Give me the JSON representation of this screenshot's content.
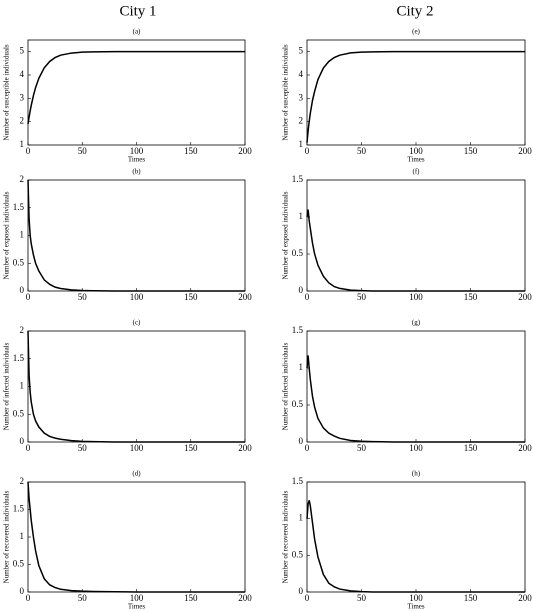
{
  "column_titles": [
    "City 1",
    "City 2"
  ],
  "chart_data": [
    {
      "type": "line",
      "title": "(a)",
      "y_label": "Number of susceptible individuals",
      "x_label": "Times",
      "x": [
        0,
        1,
        2,
        3,
        5,
        7,
        10,
        15,
        20,
        25,
        30,
        40,
        50,
        60,
        80,
        100,
        150,
        200
      ],
      "values": [
        1.9,
        2.2,
        2.46,
        2.7,
        3.12,
        3.46,
        3.86,
        4.31,
        4.58,
        4.75,
        4.85,
        4.94,
        4.98,
        4.99,
        5,
        5,
        5,
        5
      ],
      "color": "#000000",
      "xlim": [
        0,
        200
      ],
      "xticks": [
        0,
        50,
        100,
        150,
        200
      ],
      "ylim": [
        1,
        5.5
      ],
      "yticks": [
        1,
        2,
        3,
        4,
        5
      ]
    },
    {
      "type": "line",
      "title": "(b)",
      "y_label": "Number of exposed individuals",
      "x": [
        0,
        1,
        2,
        3,
        5,
        7,
        10,
        15,
        20,
        25,
        30,
        40,
        50,
        60,
        80,
        100,
        150,
        200
      ],
      "values": [
        2,
        1.3,
        1.0,
        0.85,
        0.65,
        0.5,
        0.36,
        0.2,
        0.12,
        0.07,
        0.045,
        0.02,
        0.01,
        0.005,
        0,
        0,
        0,
        0
      ],
      "color": "#000000",
      "xlim": [
        0,
        200
      ],
      "xticks": [
        0,
        50,
        100,
        150,
        200
      ],
      "ylim": [
        0,
        2
      ],
      "yticks": [
        0,
        0.5,
        1,
        1.5,
        2
      ]
    },
    {
      "type": "line",
      "title": "(c)",
      "y_label": "Number of infected individuals",
      "x": [
        0,
        1,
        2,
        3,
        5,
        7,
        10,
        15,
        20,
        25,
        30,
        40,
        50,
        60,
        80,
        100,
        150,
        200
      ],
      "values": [
        2,
        1.2,
        0.9,
        0.72,
        0.5,
        0.38,
        0.27,
        0.16,
        0.1,
        0.07,
        0.05,
        0.025,
        0.012,
        0.006,
        0,
        0,
        0,
        0
      ],
      "color": "#000000",
      "xlim": [
        0,
        200
      ],
      "xticks": [
        0,
        50,
        100,
        150,
        200
      ],
      "ylim": [
        0,
        2
      ],
      "yticks": [
        0,
        0.5,
        1,
        1.5,
        2
      ]
    },
    {
      "type": "line",
      "title": "(d)",
      "y_label": "Number of recovered individuals",
      "x_label": "Times",
      "x": [
        0,
        1,
        2,
        3,
        5,
        7,
        10,
        15,
        20,
        25,
        30,
        40,
        50,
        60,
        80,
        100,
        150,
        200
      ],
      "values": [
        2,
        1.7,
        1.5,
        1.3,
        1.0,
        0.75,
        0.48,
        0.24,
        0.13,
        0.08,
        0.05,
        0.025,
        0.015,
        0.01,
        0.005,
        0,
        0,
        0
      ],
      "color": "#000000",
      "xlim": [
        0,
        200
      ],
      "xticks": [
        0,
        50,
        100,
        150,
        200
      ],
      "ylim": [
        0,
        2
      ],
      "yticks": [
        0,
        0.5,
        1,
        1.5,
        2
      ]
    },
    {
      "type": "line",
      "title": "(e)",
      "y_label": "Number of susceptible individuals",
      "x_label": "Times",
      "x": [
        0,
        1,
        2,
        3,
        5,
        7,
        10,
        15,
        20,
        25,
        30,
        40,
        50,
        60,
        80,
        100,
        150,
        200
      ],
      "values": [
        1.1,
        1.6,
        2.0,
        2.35,
        2.9,
        3.3,
        3.8,
        4.3,
        4.58,
        4.75,
        4.85,
        4.95,
        4.98,
        4.99,
        5,
        5,
        5,
        5
      ],
      "color": "#000000",
      "xlim": [
        0,
        200
      ],
      "xticks": [
        0,
        50,
        100,
        150,
        200
      ],
      "ylim": [
        1,
        5.5
      ],
      "yticks": [
        1,
        2,
        3,
        4,
        5
      ]
    },
    {
      "type": "line",
      "title": "(f)",
      "y_label": "Number of exposed individuals",
      "x": [
        0,
        1,
        2,
        3,
        5,
        7,
        10,
        15,
        20,
        25,
        30,
        40,
        50,
        60,
        80,
        100,
        150,
        200
      ],
      "values": [
        1.0,
        1.1,
        0.95,
        0.85,
        0.65,
        0.5,
        0.35,
        0.2,
        0.11,
        0.06,
        0.035,
        0.012,
        0.005,
        0,
        0,
        0,
        0,
        0
      ],
      "color": "#000000",
      "xlim": [
        0,
        200
      ],
      "xticks": [
        0,
        50,
        100,
        150,
        200
      ],
      "ylim": [
        0,
        1.5
      ],
      "yticks": [
        0,
        0.5,
        1,
        1.5
      ]
    },
    {
      "type": "line",
      "title": "(g)",
      "y_label": "Number of infected individuals",
      "x": [
        0,
        1,
        2,
        3,
        5,
        7,
        10,
        15,
        20,
        25,
        30,
        40,
        50,
        60,
        80,
        100,
        150,
        200
      ],
      "values": [
        1.0,
        1.17,
        1.0,
        0.85,
        0.62,
        0.47,
        0.32,
        0.19,
        0.12,
        0.08,
        0.05,
        0.02,
        0.01,
        0.005,
        0,
        0,
        0,
        0
      ],
      "color": "#000000",
      "xlim": [
        0,
        200
      ],
      "xticks": [
        0,
        50,
        100,
        150,
        200
      ],
      "ylim": [
        0,
        1.5
      ],
      "yticks": [
        0,
        0.5,
        1,
        1.5
      ]
    },
    {
      "type": "line",
      "title": "(h)",
      "y_label": "Number of recovered individuals",
      "x_label": "Times",
      "x": [
        0,
        1,
        2,
        3,
        5,
        7,
        10,
        15,
        20,
        25,
        30,
        40,
        50,
        60,
        80,
        100,
        150,
        200
      ],
      "values": [
        1.0,
        1.2,
        1.25,
        1.18,
        0.95,
        0.72,
        0.48,
        0.24,
        0.12,
        0.07,
        0.04,
        0.015,
        0.005,
        0,
        0,
        0,
        0,
        0
      ],
      "color": "#000000",
      "xlim": [
        0,
        200
      ],
      "xticks": [
        0,
        50,
        100,
        150,
        200
      ],
      "ylim": [
        0,
        1.5
      ],
      "yticks": [
        0,
        0.5,
        1,
        1.5
      ]
    }
  ]
}
